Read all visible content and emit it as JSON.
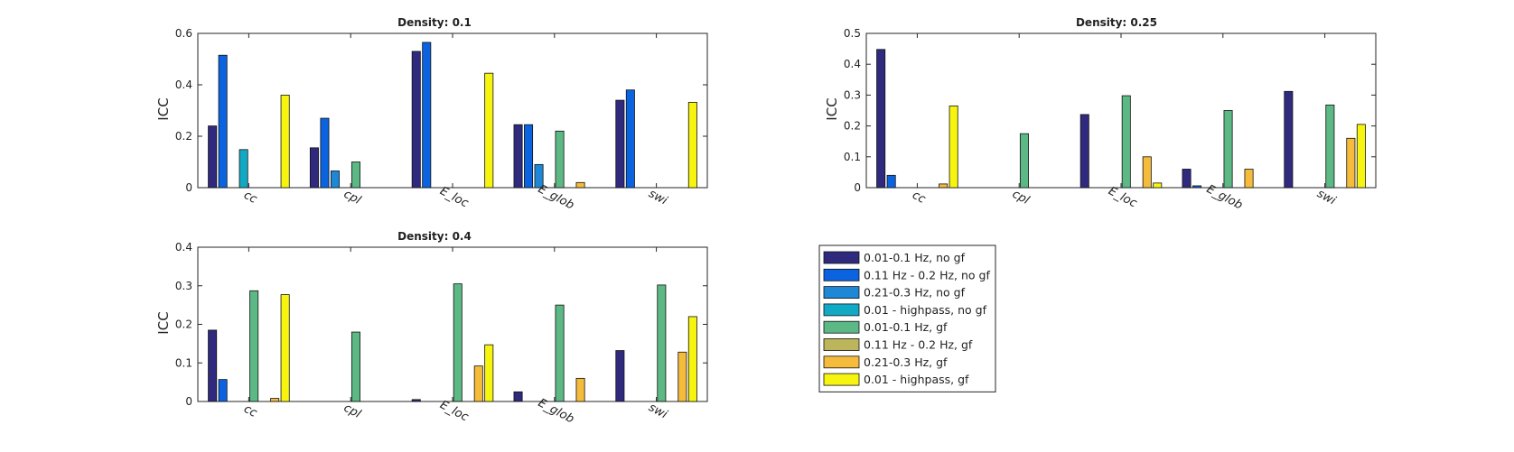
{
  "chart_data": [
    {
      "type": "bar",
      "title": "Density: 0.1",
      "ylabel": "ICC",
      "xlabel": "",
      "ylim": [
        0,
        0.6
      ],
      "yticks": [
        "0",
        "0.2",
        "0.4",
        "0.6"
      ],
      "yticks_values": [
        0,
        0.2,
        0.4,
        0.6
      ],
      "categories": [
        "cc",
        "cpl",
        "E_loc",
        "E_glob",
        "swi"
      ],
      "series": [
        {
          "name": "0.01-0.1 Hz, no gf",
          "values": [
            0.24,
            0.155,
            0.53,
            0.245,
            0.34
          ]
        },
        {
          "name": "0.11 Hz - 0.2 Hz, no gf",
          "values": [
            0.515,
            0.27,
            0.565,
            0.245,
            0.38
          ]
        },
        {
          "name": "0.21-0.3 Hz, no gf",
          "values": [
            0.0,
            0.065,
            0.0,
            0.09,
            0.0
          ]
        },
        {
          "name": "0.01 - highpass, no gf",
          "values": [
            0.148,
            0.0,
            0.0,
            0.0,
            0.0
          ]
        },
        {
          "name": "0.01-0.1 Hz, gf",
          "values": [
            0.0,
            0.1,
            0.0,
            0.22,
            0.0
          ]
        },
        {
          "name": "0.11 Hz - 0.2 Hz, gf",
          "values": [
            0.0,
            0.0,
            0.0,
            0.0,
            0.0
          ]
        },
        {
          "name": "0.21-0.3 Hz, gf",
          "values": [
            0.0,
            0.0,
            0.0,
            0.02,
            0.0
          ]
        },
        {
          "name": "0.01 - highpass, gf",
          "values": [
            0.36,
            0.0,
            0.445,
            0.0,
            0.332
          ]
        }
      ]
    },
    {
      "type": "bar",
      "title": "Density: 0.25",
      "ylabel": "ICC",
      "xlabel": "",
      "ylim": [
        0,
        0.5
      ],
      "yticks": [
        "0",
        "0.1",
        "0.2",
        "0.3",
        "0.4",
        "0.5"
      ],
      "yticks_values": [
        0,
        0.1,
        0.2,
        0.3,
        0.4,
        0.5
      ],
      "categories": [
        "cc",
        "cpl",
        "E_loc",
        "E_glob",
        "swi"
      ],
      "series": [
        {
          "name": "0.01-0.1 Hz, no gf",
          "values": [
            0.448,
            0.0,
            0.237,
            0.06,
            0.312
          ]
        },
        {
          "name": "0.11 Hz - 0.2 Hz, no gf",
          "values": [
            0.04,
            0.0,
            0.0,
            0.006,
            0.0
          ]
        },
        {
          "name": "0.21-0.3 Hz, no gf",
          "values": [
            0.0,
            0.0,
            0.0,
            0.0,
            0.0
          ]
        },
        {
          "name": "0.01 - highpass, no gf",
          "values": [
            0.0,
            0.0,
            0.0,
            0.0,
            0.0
          ]
        },
        {
          "name": "0.01-0.1 Hz, gf",
          "values": [
            0.0,
            0.175,
            0.298,
            0.25,
            0.268
          ]
        },
        {
          "name": "0.11 Hz - 0.2 Hz, gf",
          "values": [
            0.0,
            0.0,
            0.0,
            0.0,
            0.0
          ]
        },
        {
          "name": "0.21-0.3 Hz, gf",
          "values": [
            0.012,
            0.0,
            0.1,
            0.06,
            0.16
          ]
        },
        {
          "name": "0.01 - highpass, gf",
          "values": [
            0.265,
            0.0,
            0.015,
            0.0,
            0.205
          ]
        }
      ]
    },
    {
      "type": "bar",
      "title": "Density: 0.4",
      "ylabel": "ICC",
      "xlabel": "",
      "ylim": [
        0,
        0.4
      ],
      "yticks": [
        "0",
        "0.1",
        "0.2",
        "0.3",
        "0.4"
      ],
      "yticks_values": [
        0,
        0.1,
        0.2,
        0.3,
        0.4
      ],
      "categories": [
        "cc",
        "cpl",
        "E_loc",
        "E_glob",
        "swi"
      ],
      "series": [
        {
          "name": "0.01-0.1 Hz, no gf",
          "values": [
            0.185,
            0.0,
            0.005,
            0.025,
            0.132
          ]
        },
        {
          "name": "0.11 Hz - 0.2 Hz, no gf",
          "values": [
            0.057,
            0.0,
            0.0,
            0.0,
            0.0
          ]
        },
        {
          "name": "0.21-0.3 Hz, no gf",
          "values": [
            0.0,
            0.0,
            0.0,
            0.0,
            0.0
          ]
        },
        {
          "name": "0.01 - highpass, no gf",
          "values": [
            0.0,
            0.0,
            0.0,
            0.0,
            0.0
          ]
        },
        {
          "name": "0.01-0.1 Hz, gf",
          "values": [
            0.287,
            0.18,
            0.305,
            0.25,
            0.302
          ]
        },
        {
          "name": "0.11 Hz - 0.2 Hz, gf",
          "values": [
            0.0,
            0.0,
            0.0,
            0.0,
            0.0
          ]
        },
        {
          "name": "0.21-0.3 Hz, gf",
          "values": [
            0.008,
            0.0,
            0.092,
            0.06,
            0.128
          ]
        },
        {
          "name": "0.01 - highpass, gf",
          "values": [
            0.277,
            0.0,
            0.147,
            0.0,
            0.22
          ]
        }
      ]
    }
  ],
  "legend": {
    "placement": "bottom-right",
    "items": [
      {
        "label": "0.01-0.1 Hz, no gf",
        "color": "#2f2a7e"
      },
      {
        "label": "0.11 Hz - 0.2 Hz, no gf",
        "color": "#0b63e0"
      },
      {
        "label": "0.21-0.3 Hz, no gf",
        "color": "#1f88d6"
      },
      {
        "label": "0.01 - highpass, no gf",
        "color": "#12a9c4"
      },
      {
        "label": "0.01-0.1 Hz, gf",
        "color": "#5cb884"
      },
      {
        "label": "0.11 Hz - 0.2 Hz, gf",
        "color": "#bcb55c"
      },
      {
        "label": "0.21-0.3 Hz, gf",
        "color": "#f5bb3a"
      },
      {
        "label": "0.01 - highpass, gf",
        "color": "#f7f50f"
      }
    ]
  }
}
